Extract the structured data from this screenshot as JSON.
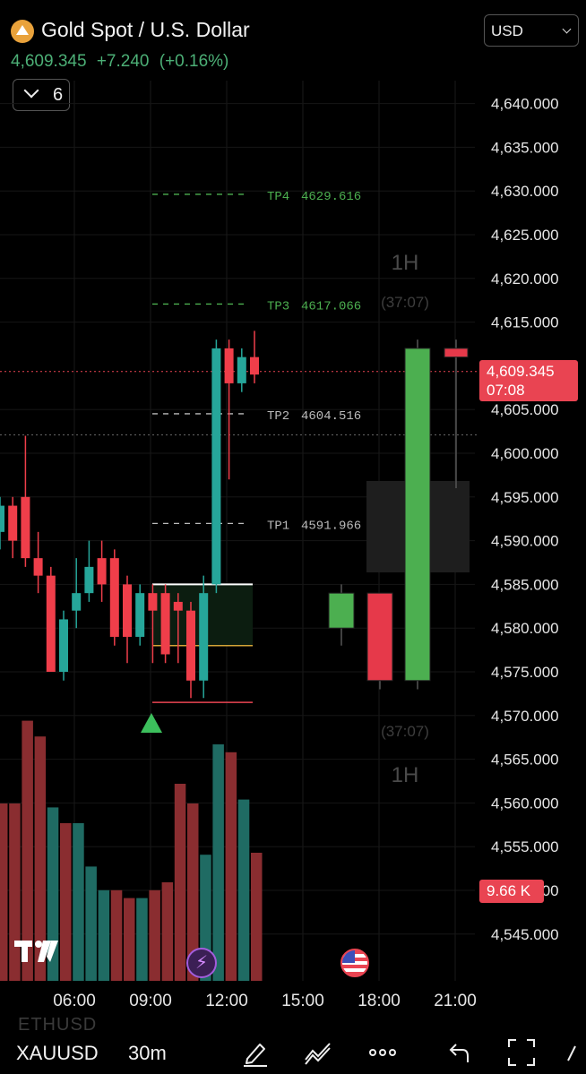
{
  "header": {
    "symbol_title": "Gold Spot / U.S. Dollar",
    "price": "4,609.345",
    "change": "+7.240",
    "change_pct": "(+0.16%)",
    "indicator_count": "6",
    "currency": "USD"
  },
  "price_scale": {
    "ticks": [
      "4,640.000",
      "4,635.000",
      "4,630.000",
      "4,625.000",
      "4,620.000",
      "4,615.000",
      "4,605.000",
      "4,600.000",
      "4,595.000",
      "4,590.000",
      "4,585.000",
      "4,580.000",
      "4,575.000",
      "4,570.000",
      "4,565.000",
      "4,560.000",
      "4,555.000",
      "4,550.000",
      "4,545.000"
    ],
    "last_price": "4,609.345",
    "countdown": "07:08",
    "volume_label": "9.66 K"
  },
  "targets": [
    {
      "label": "TP4",
      "value": "4629.616",
      "color": "#4caf50"
    },
    {
      "label": "TP3",
      "value": "4617.066",
      "color": "#4caf50"
    },
    {
      "label": "TP2",
      "value": "4604.516",
      "color": "#bbbbbb"
    },
    {
      "label": "TP1",
      "value": "4591.966",
      "color": "#bbbbbb"
    }
  ],
  "htf_panel": {
    "timeframe_top": "1H",
    "timer_top": "(37:07)",
    "timeframe_bottom": "1H",
    "timer_bottom": "(37:07)"
  },
  "time_axis": [
    "06:00",
    "09:00",
    "12:00",
    "15:00",
    "18:00",
    "21:00"
  ],
  "bottom_bar": {
    "symbol": "XAUUSD",
    "interval": "30m",
    "ghost_symbol": "ETHUSD",
    "icons": [
      "draw-icon",
      "indicators-icon",
      "more-icon",
      "undo-icon",
      "fullscreen-icon"
    ]
  },
  "colors": {
    "up": "#26a69a",
    "down": "#ef3e4a",
    "htf_up": "#4caf50",
    "htf_down": "#e6394a"
  },
  "chart_data": {
    "type": "candlestick",
    "interval": "30m",
    "candles": [
      {
        "o": 4591,
        "h": 4595,
        "c": 4594,
        "l": 4589
      },
      {
        "o": 4594,
        "h": 4595,
        "c": 4590,
        "l": 4588
      },
      {
        "o": 4595,
        "h": 4602,
        "c": 4588,
        "l": 4587
      },
      {
        "o": 4588,
        "h": 4591,
        "c": 4586,
        "l": 4584
      },
      {
        "o": 4586,
        "h": 4587,
        "c": 4575,
        "l": 4575
      },
      {
        "o": 4575,
        "h": 4582,
        "c": 4581,
        "l": 4574
      },
      {
        "o": 4582,
        "h": 4588,
        "c": 4584,
        "l": 4580
      },
      {
        "o": 4584,
        "h": 4590,
        "c": 4587,
        "l": 4583
      },
      {
        "o": 4588,
        "h": 4590,
        "c": 4585,
        "l": 4583
      },
      {
        "o": 4588,
        "h": 4589,
        "c": 4579,
        "l": 4578
      },
      {
        "o": 4585,
        "h": 4586,
        "c": 4579,
        "l": 4576
      },
      {
        "o": 4579,
        "h": 4585,
        "c": 4584,
        "l": 4578
      },
      {
        "o": 4584,
        "h": 4585,
        "c": 4582,
        "l": 4576
      },
      {
        "o": 4584,
        "h": 4585,
        "c": 4577,
        "l": 4576
      },
      {
        "o": 4583,
        "h": 4584,
        "c": 4582,
        "l": 4576
      },
      {
        "o": 4582,
        "h": 4583,
        "c": 4574,
        "l": 4572
      },
      {
        "o": 4574,
        "h": 4586,
        "c": 4584,
        "l": 4572
      },
      {
        "o": 4585,
        "h": 4613,
        "c": 4612,
        "l": 4584
      },
      {
        "o": 4612,
        "h": 4613,
        "c": 4608,
        "l": 4597
      },
      {
        "o": 4608,
        "h": 4612,
        "c": 4611,
        "l": 4607
      },
      {
        "o": 4611,
        "h": 4614,
        "c": 4609,
        "l": 4608
      }
    ],
    "volume": [
      {
        "v": 9.0,
        "d": "down"
      },
      {
        "v": 9.0,
        "d": "down"
      },
      {
        "v": 13.2,
        "d": "down"
      },
      {
        "v": 12.4,
        "d": "down"
      },
      {
        "v": 8.8,
        "d": "up"
      },
      {
        "v": 8.0,
        "d": "down"
      },
      {
        "v": 8.0,
        "d": "up"
      },
      {
        "v": 5.8,
        "d": "up"
      },
      {
        "v": 4.6,
        "d": "up"
      },
      {
        "v": 4.6,
        "d": "down"
      },
      {
        "v": 4.2,
        "d": "down"
      },
      {
        "v": 4.2,
        "d": "up"
      },
      {
        "v": 4.6,
        "d": "down"
      },
      {
        "v": 5.0,
        "d": "down"
      },
      {
        "v": 10.0,
        "d": "down"
      },
      {
        "v": 9.0,
        "d": "down"
      },
      {
        "v": 6.4,
        "d": "up"
      },
      {
        "v": 12.0,
        "d": "up"
      },
      {
        "v": 11.6,
        "d": "down"
      },
      {
        "v": 9.2,
        "d": "up"
      },
      {
        "v": 6.5,
        "d": "down"
      }
    ],
    "htf_candles": [
      {
        "o": 4580,
        "h": 4585,
        "c": 4584,
        "l": 4578
      },
      {
        "o": 4584,
        "h": 4584,
        "c": 4574,
        "l": 4573
      },
      {
        "o": 4574,
        "h": 4613,
        "c": 4612,
        "l": 4573
      },
      {
        "o": 4612,
        "h": 4613,
        "c": 4611,
        "l": 4596
      }
    ],
    "levels": {
      "tp4": 4629.616,
      "tp3": 4617.066,
      "tp2": 4604.516,
      "tp1": 4591.966,
      "entry": 4585,
      "sl": 4571.5,
      "mid": 4578,
      "last": 4609.345,
      "prev_close": 4602.1
    },
    "y_range": [
      4540,
      4645
    ]
  }
}
